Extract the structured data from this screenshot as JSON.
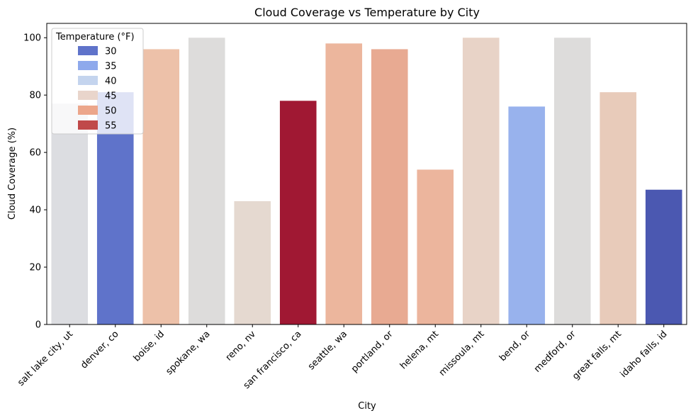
{
  "chart_data": {
    "type": "bar",
    "title": "Cloud Coverage vs Temperature by City",
    "xlabel": "City",
    "ylabel": "Cloud Coverage (%)",
    "ylim": [
      0,
      105
    ],
    "yticks": [
      0,
      20,
      40,
      60,
      80,
      100
    ],
    "grid": false,
    "categories": [
      "salt lake city, ut",
      "denver, co",
      "boise, id",
      "spokane, wa",
      "reno, nv",
      "san francisco, ca",
      "seattle, wa",
      "portland, or",
      "helena, mt",
      "missoula, mt",
      "bend, or",
      "medford, or",
      "great falls, mt",
      "idaho falls, id"
    ],
    "values": [
      77,
      81,
      96,
      100,
      43,
      78,
      98,
      96,
      54,
      100,
      76,
      100,
      81,
      47
    ],
    "bar_colors": [
      "#dcdde1",
      "#5f73ca",
      "#edc1a9",
      "#dddcdb",
      "#e5d9d0",
      "#a01833",
      "#ecb69d",
      "#e8aa92",
      "#ecb59d",
      "#e8d3c7",
      "#98b2ed",
      "#dddcdb",
      "#e8cbba",
      "#4b58b1"
    ],
    "legend": {
      "title": "Temperature (°F)",
      "position": "top-left",
      "entries": [
        {
          "label": "30",
          "color": "#5f73ca"
        },
        {
          "label": "35",
          "color": "#8ea9ec"
        },
        {
          "label": "40",
          "color": "#c4d4ee"
        },
        {
          "label": "45",
          "color": "#e9d5cb"
        },
        {
          "label": "50",
          "color": "#eca68b"
        },
        {
          "label": "55",
          "color": "#c0494a"
        }
      ]
    }
  }
}
